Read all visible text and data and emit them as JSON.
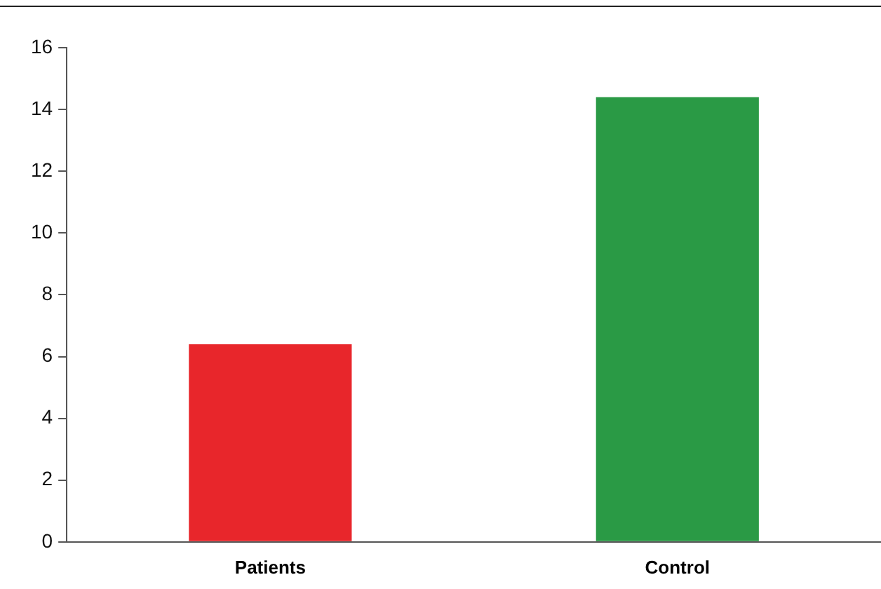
{
  "chart_data": {
    "type": "bar",
    "categories": [
      "Patients",
      "Control"
    ],
    "values": [
      6.4,
      14.4
    ],
    "colors": [
      "#e8262b",
      "#2a9a45"
    ],
    "ylim": [
      0,
      16
    ],
    "yticks": [
      0,
      2,
      4,
      6,
      8,
      10,
      12,
      14,
      16
    ],
    "grid": false,
    "legend": false
  }
}
